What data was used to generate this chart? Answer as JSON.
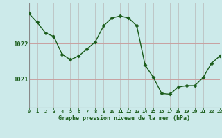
{
  "hours": [
    0,
    1,
    2,
    3,
    4,
    5,
    6,
    7,
    8,
    9,
    10,
    11,
    12,
    13,
    14,
    15,
    16,
    17,
    18,
    19,
    20,
    21,
    22,
    23
  ],
  "pressure": [
    1022.85,
    1022.6,
    1022.3,
    1022.2,
    1021.7,
    1021.55,
    1021.65,
    1021.85,
    1022.05,
    1022.5,
    1022.72,
    1022.78,
    1022.72,
    1022.5,
    1021.4,
    1021.05,
    1020.6,
    1020.58,
    1020.78,
    1020.82,
    1020.82,
    1021.05,
    1021.45,
    1021.65
  ],
  "line_color": "#1a5c1a",
  "marker": "D",
  "marker_size": 2.5,
  "bg_color": "#cceaea",
  "grid_v_color": "#b8b8b8",
  "grid_h_color": "#c8a0a0",
  "yticks": [
    1021,
    1022
  ],
  "xlabel": "Graphe pression niveau de la mer (hPa)",
  "xlabel_color": "#1a5c1a",
  "xlim": [
    0,
    23
  ],
  "ylim": [
    1020.2,
    1023.15
  ],
  "tick_label_color": "#1a5c1a",
  "tick_fontsize": 5.0,
  "xlabel_fontsize": 6.0,
  "ytick_fontsize": 6.5
}
